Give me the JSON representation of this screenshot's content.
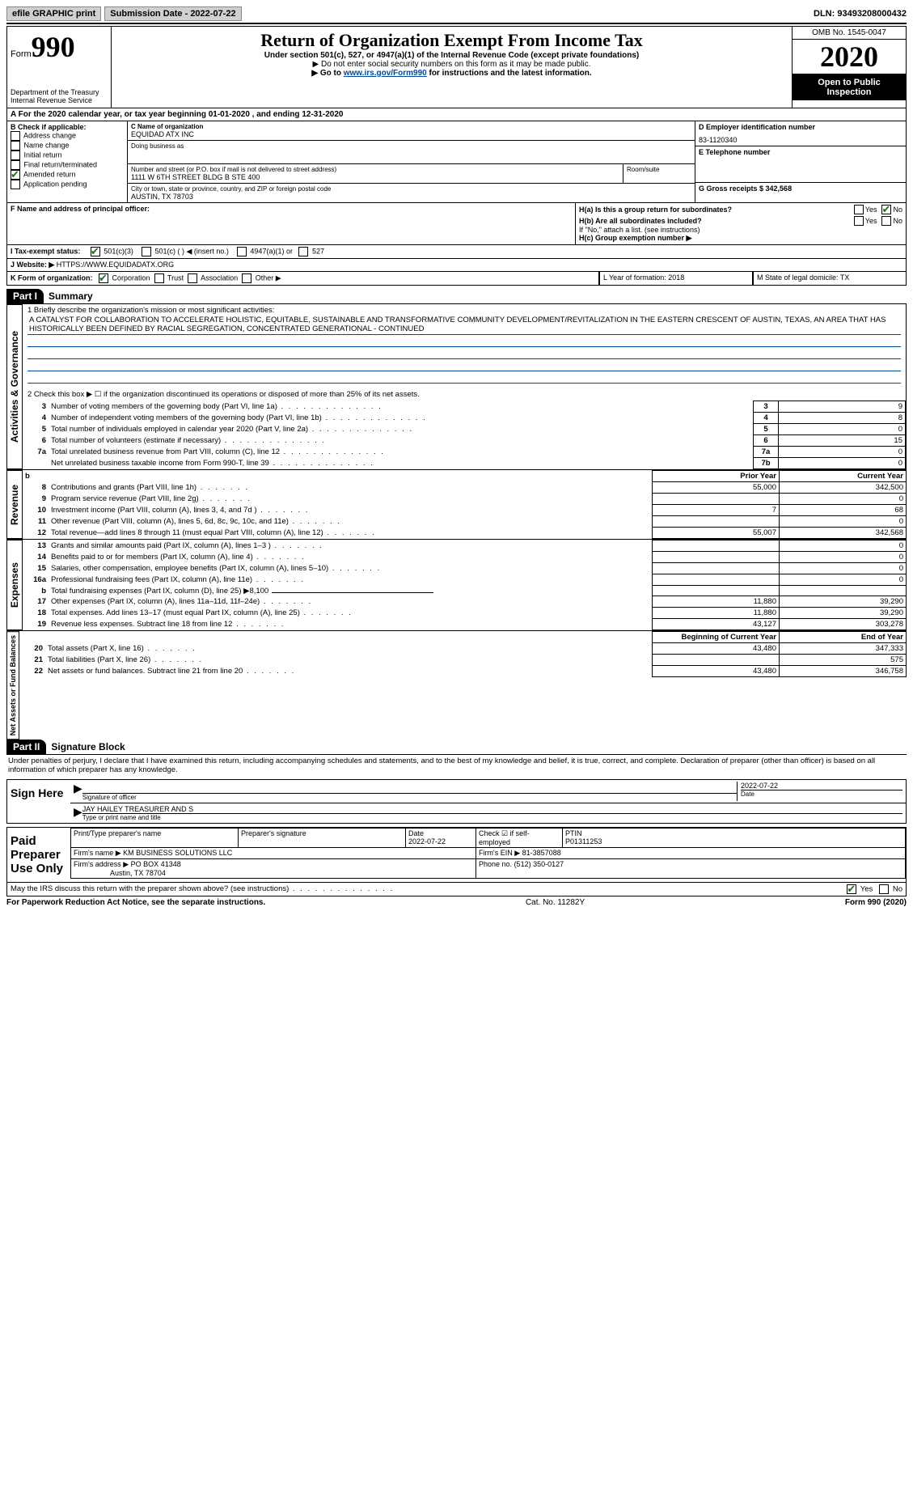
{
  "topbar": {
    "efile": "efile GRAPHIC print",
    "submission": "Submission Date - 2022-07-22",
    "dln": "DLN: 93493208000432"
  },
  "header": {
    "form": "Form",
    "form_no": "990",
    "dept": "Department of the Treasury\nInternal Revenue Service",
    "title": "Return of Organization Exempt From Income Tax",
    "sub1": "Under section 501(c), 527, or 4947(a)(1) of the Internal Revenue Code (except private foundations)",
    "sub2": "▶ Do not enter social security numbers on this form as it may be made public.",
    "sub3_pre": "▶ Go to ",
    "sub3_link": "www.irs.gov/Form990",
    "sub3_post": " for instructions and the latest information.",
    "omb": "OMB No. 1545-0047",
    "year": "2020",
    "open": "Open to Public Inspection"
  },
  "row_a": "A For the 2020 calendar year, or tax year beginning 01-01-2020    , and ending 12-31-2020",
  "section_b": {
    "b_title": "B Check if applicable:",
    "b_items": [
      "Address change",
      "Name change",
      "Initial return",
      "Final return/terminated",
      "Amended return",
      "Application pending"
    ],
    "c_label": "C Name of organization",
    "c_name": "EQUIDAD ATX INC",
    "dba": "Doing business as",
    "addr_label": "Number and street (or P.O. box if mail is not delivered to street address)",
    "room": "Room/suite",
    "addr": "1111 W 6TH STREET BLDG B STE 400",
    "city_label": "City or town, state or province, country, and ZIP or foreign postal code",
    "city": "AUSTIN, TX  78703",
    "d_label": "D Employer identification number",
    "d_val": "83-1120340",
    "e_label": "E Telephone number",
    "g_label": "G Gross receipts $ 342,568"
  },
  "row_f": {
    "f": "F  Name and address of principal officer:",
    "ha": "H(a)  Is this a group return for subordinates?",
    "hb": "H(b)  Are all subordinates included?",
    "hb_note": "If \"No,\" attach a list. (see instructions)",
    "hc": "H(c)  Group exemption number ▶",
    "yes": "Yes",
    "no": "No"
  },
  "row_i": {
    "label": "I   Tax-exempt status:",
    "opt1": "501(c)(3)",
    "opt2": "501(c) (  ) ◀ (insert no.)",
    "opt3": "4947(a)(1) or",
    "opt4": "527"
  },
  "row_j": {
    "label": "J   Website: ▶",
    "val": "HTTPS://WWW.EQUIDADATX.ORG"
  },
  "row_k": {
    "label": "K Form of organization:",
    "opts": [
      "Corporation",
      "Trust",
      "Association",
      "Other ▶"
    ],
    "l": "L Year of formation: 2018",
    "m": "M State of legal domicile: TX"
  },
  "parts": {
    "p1": "Part I",
    "p1_title": "Summary",
    "p2": "Part II",
    "p2_title": "Signature Block"
  },
  "summary": {
    "line1_label": "1   Briefly describe the organization's mission or most significant activities:",
    "mission": "A CATALYST FOR COLLABORATION TO ACCELERATE HOLISTIC, EQUITABLE, SUSTAINABLE AND TRANSFORMATIVE COMMUNITY DEVELOPMENT/REVITALIZATION IN THE EASTERN CRESCENT OF AUSTIN, TEXAS, AN AREA THAT HAS HISTORICALLY BEEN DEFINED BY RACIAL SEGREGATION, CONCENTRATED GENERATIONAL - CONTINUED",
    "line2": "2   Check this box ▶ ☐ if the organization discontinued its operations or disposed of more than 25% of its net assets.",
    "vert": {
      "ag": "Activities & Governance",
      "rev": "Revenue",
      "exp": "Expenses",
      "net": "Net Assets or Fund Balances"
    },
    "gov_rows": [
      {
        "n": "3",
        "t": "Number of voting members of the governing body (Part VI, line 1a)",
        "box": "3",
        "v": "9"
      },
      {
        "n": "4",
        "t": "Number of independent voting members of the governing body (Part VI, line 1b)",
        "box": "4",
        "v": "8"
      },
      {
        "n": "5",
        "t": "Total number of individuals employed in calendar year 2020 (Part V, line 2a)",
        "box": "5",
        "v": "0"
      },
      {
        "n": "6",
        "t": "Total number of volunteers (estimate if necessary)",
        "box": "6",
        "v": "15"
      },
      {
        "n": "7a",
        "t": "Total unrelated business revenue from Part VIII, column (C), line 12",
        "box": "7a",
        "v": "0"
      },
      {
        "n": "",
        "t": "Net unrelated business taxable income from Form 990-T, line 39",
        "box": "7b",
        "v": "0"
      }
    ],
    "py": "Prior Year",
    "cy": "Current Year",
    "rev_rows": [
      {
        "n": "8",
        "t": "Contributions and grants (Part VIII, line 1h)",
        "py": "55,000",
        "cy": "342,500"
      },
      {
        "n": "9",
        "t": "Program service revenue (Part VIII, line 2g)",
        "py": "",
        "cy": "0"
      },
      {
        "n": "10",
        "t": "Investment income (Part VIII, column (A), lines 3, 4, and 7d )",
        "py": "7",
        "cy": "68"
      },
      {
        "n": "11",
        "t": "Other revenue (Part VIII, column (A), lines 5, 6d, 8c, 9c, 10c, and 11e)",
        "py": "",
        "cy": "0"
      },
      {
        "n": "12",
        "t": "Total revenue—add lines 8 through 11 (must equal Part VIII, column (A), line 12)",
        "py": "55,007",
        "cy": "342,568"
      }
    ],
    "exp_rows": [
      {
        "n": "13",
        "t": "Grants and similar amounts paid (Part IX, column (A), lines 1–3 )",
        "py": "",
        "cy": "0"
      },
      {
        "n": "14",
        "t": "Benefits paid to or for members (Part IX, column (A), line 4)",
        "py": "",
        "cy": "0"
      },
      {
        "n": "15",
        "t": "Salaries, other compensation, employee benefits (Part IX, column (A), lines 5–10)",
        "py": "",
        "cy": "0"
      },
      {
        "n": "16a",
        "t": "Professional fundraising fees (Part IX, column (A), line 11e)",
        "py": "",
        "cy": "0"
      },
      {
        "n": "b",
        "t": "Total fundraising expenses (Part IX, column (D), line 25) ▶8,100",
        "py": "",
        "cy": "",
        "noval": true
      },
      {
        "n": "17",
        "t": "Other expenses (Part IX, column (A), lines 11a–11d, 11f–24e)",
        "py": "11,880",
        "cy": "39,290"
      },
      {
        "n": "18",
        "t": "Total expenses. Add lines 13–17 (must equal Part IX, column (A), line 25)",
        "py": "11,880",
        "cy": "39,290"
      },
      {
        "n": "19",
        "t": "Revenue less expenses. Subtract line 18 from line 12",
        "py": "43,127",
        "cy": "303,278"
      }
    ],
    "boy": "Beginning of Current Year",
    "eoy": "End of Year",
    "net_rows": [
      {
        "n": "20",
        "t": "Total assets (Part X, line 16)",
        "py": "43,480",
        "cy": "347,333"
      },
      {
        "n": "21",
        "t": "Total liabilities (Part X, line 26)",
        "py": "",
        "cy": "575"
      },
      {
        "n": "22",
        "t": "Net assets or fund balances. Subtract line 21 from line 20",
        "py": "43,480",
        "cy": "346,758"
      }
    ]
  },
  "sig": {
    "penalty": "Under penalties of perjury, I declare that I have examined this return, including accompanying schedules and statements, and to the best of my knowledge and belief, it is true, correct, and complete. Declaration of preparer (other than officer) is based on all information of which preparer has any knowledge.",
    "sign_here": "Sign Here",
    "sig_officer": "Signature of officer",
    "date": "Date",
    "date_val": "2022-07-22",
    "name_title": "JAY HAILEY TREASURER AND S",
    "type_name": "Type or print name and title",
    "paid": "Paid Preparer Use Only",
    "p_name": "Print/Type preparer's name",
    "p_sig": "Preparer's signature",
    "p_date": "Date",
    "p_date_val": "2022-07-22",
    "p_check": "Check ☑ if self-employed",
    "ptin_l": "PTIN",
    "ptin": "P01311253",
    "firm_name_l": "Firm's name    ▶",
    "firm_name": "KM BUSINESS SOLUTIONS LLC",
    "firm_ein_l": "Firm's EIN ▶",
    "firm_ein": "81-3857088",
    "firm_addr_l": "Firm's address ▶",
    "firm_addr": "PO BOX 41348",
    "firm_city": "Austin, TX  78704",
    "phone_l": "Phone no.",
    "phone": "(512) 350-0127",
    "discuss": "May the IRS discuss this return with the preparer shown above? (see instructions)"
  },
  "footer": {
    "left": "For Paperwork Reduction Act Notice, see the separate instructions.",
    "mid": "Cat. No. 11282Y",
    "right": "Form 990 (2020)"
  }
}
